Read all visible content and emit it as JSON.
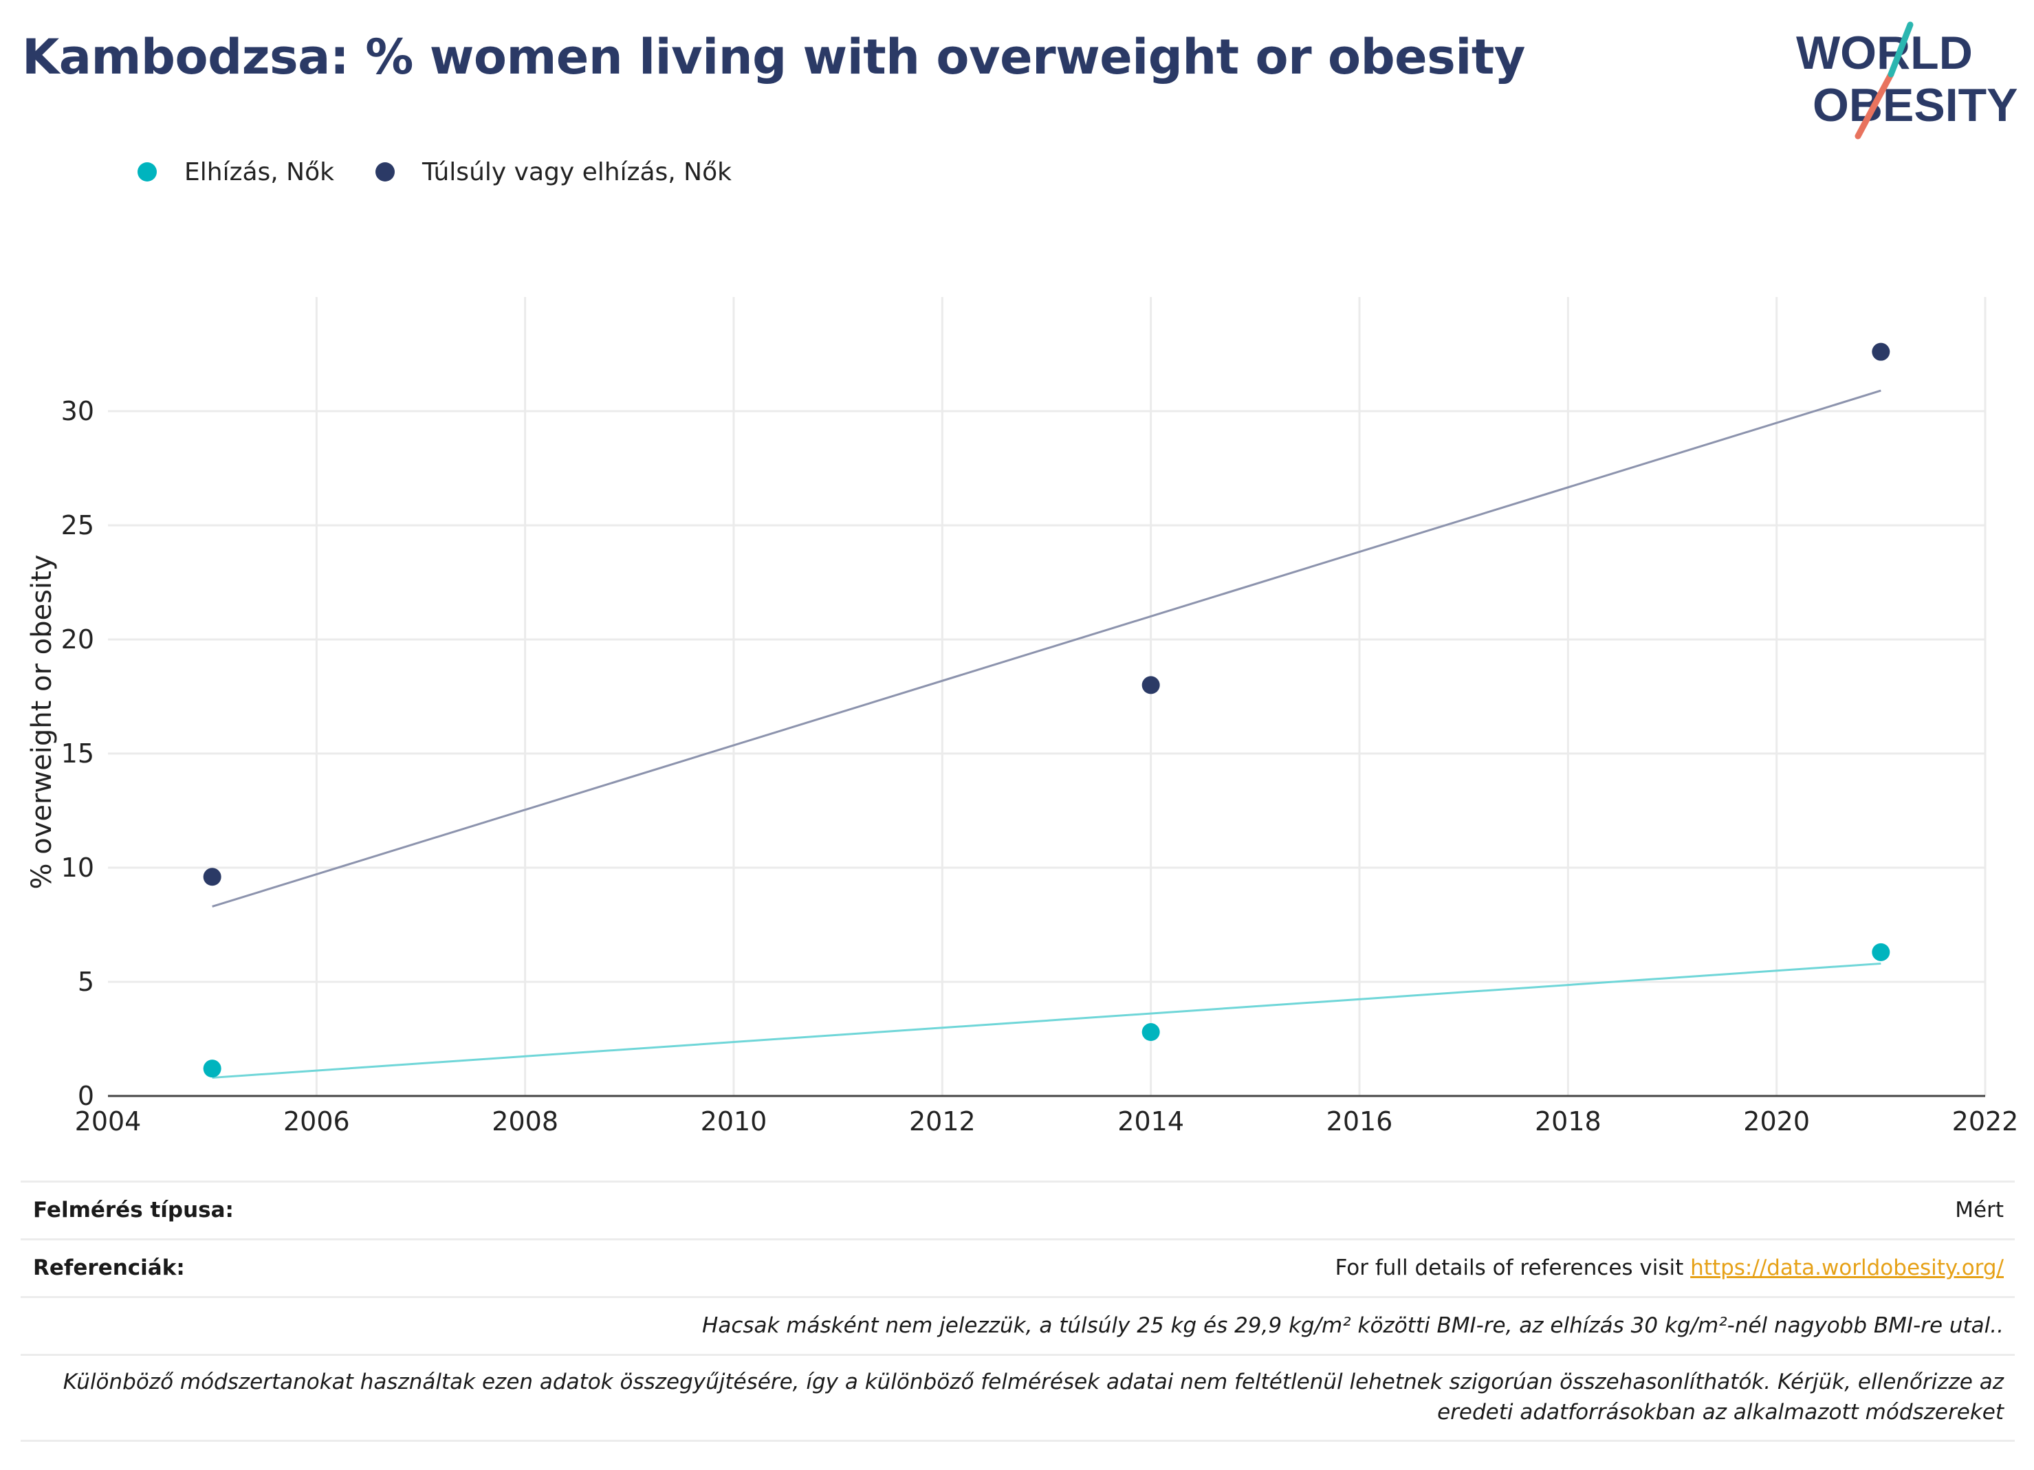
{
  "title": "Kambodzsa: % women living with overweight or obesity",
  "logo": {
    "line1": "WORLD",
    "line2": "OBESITY"
  },
  "colors": {
    "obesity": "#00b4be",
    "overweight": "#2b3a66",
    "overweight_trend": "#8c93ad",
    "obesity_trend": "#6fd6d8",
    "title": "#2b3a66",
    "link": "#e6a117",
    "logo_slash": "#e8735e"
  },
  "legend": [
    {
      "label": "Elhízás, Nők",
      "color": "#00b4be"
    },
    {
      "label": "Túlsúly vagy elhízás, Nők",
      "color": "#2b3a66"
    }
  ],
  "chart_data": {
    "type": "scatter",
    "ylabel": "% overweight or obesity",
    "xlabel": "",
    "xlim": [
      2004,
      2022
    ],
    "ylim": [
      0,
      35
    ],
    "x_ticks": [
      2004,
      2006,
      2008,
      2010,
      2012,
      2014,
      2016,
      2018,
      2020,
      2022
    ],
    "y_ticks": [
      0,
      5,
      10,
      15,
      20,
      25,
      30
    ],
    "grid": true,
    "legend_position": "top-left",
    "series": [
      {
        "name": "Elhízás, Nők",
        "color": "#00b4be",
        "x": [
          2005,
          2014,
          2021
        ],
        "y": [
          1.2,
          2.8,
          6.3
        ],
        "trend": {
          "x": [
            2005,
            2021
          ],
          "y": [
            0.8,
            5.8
          ],
          "color": "#6fd6d8"
        }
      },
      {
        "name": "Túlsúly vagy elhízás, Nők",
        "color": "#2b3a66",
        "x": [
          2005,
          2014,
          2021
        ],
        "y": [
          9.6,
          18.0,
          32.6
        ],
        "trend": {
          "x": [
            2005,
            2021
          ],
          "y": [
            8.3,
            30.9
          ],
          "color": "#8c93ad"
        }
      }
    ]
  },
  "info": {
    "survey_type_label": "Felmérés típusa:",
    "survey_type_value": "Mért",
    "references_label": "Referenciák:",
    "references_text": "For full details of references visit ",
    "references_link": "https://data.worldobesity.org/",
    "note1": "Hacsak másként nem jelezzük, a túlsúly 25 kg és 29,9 kg/m² közötti BMI-re, az elhízás 30 kg/m²-nél nagyobb BMI-re utal..",
    "note2": "Különböző módszertanokat használtak ezen adatok összegyűjtésére, így a különböző felmérések adatai nem feltétlenül lehetnek szigorúan összehasonlíthatók. Kérjük, ellenőrizze az eredeti adatforrásokban az alkalmazott módszereket"
  }
}
